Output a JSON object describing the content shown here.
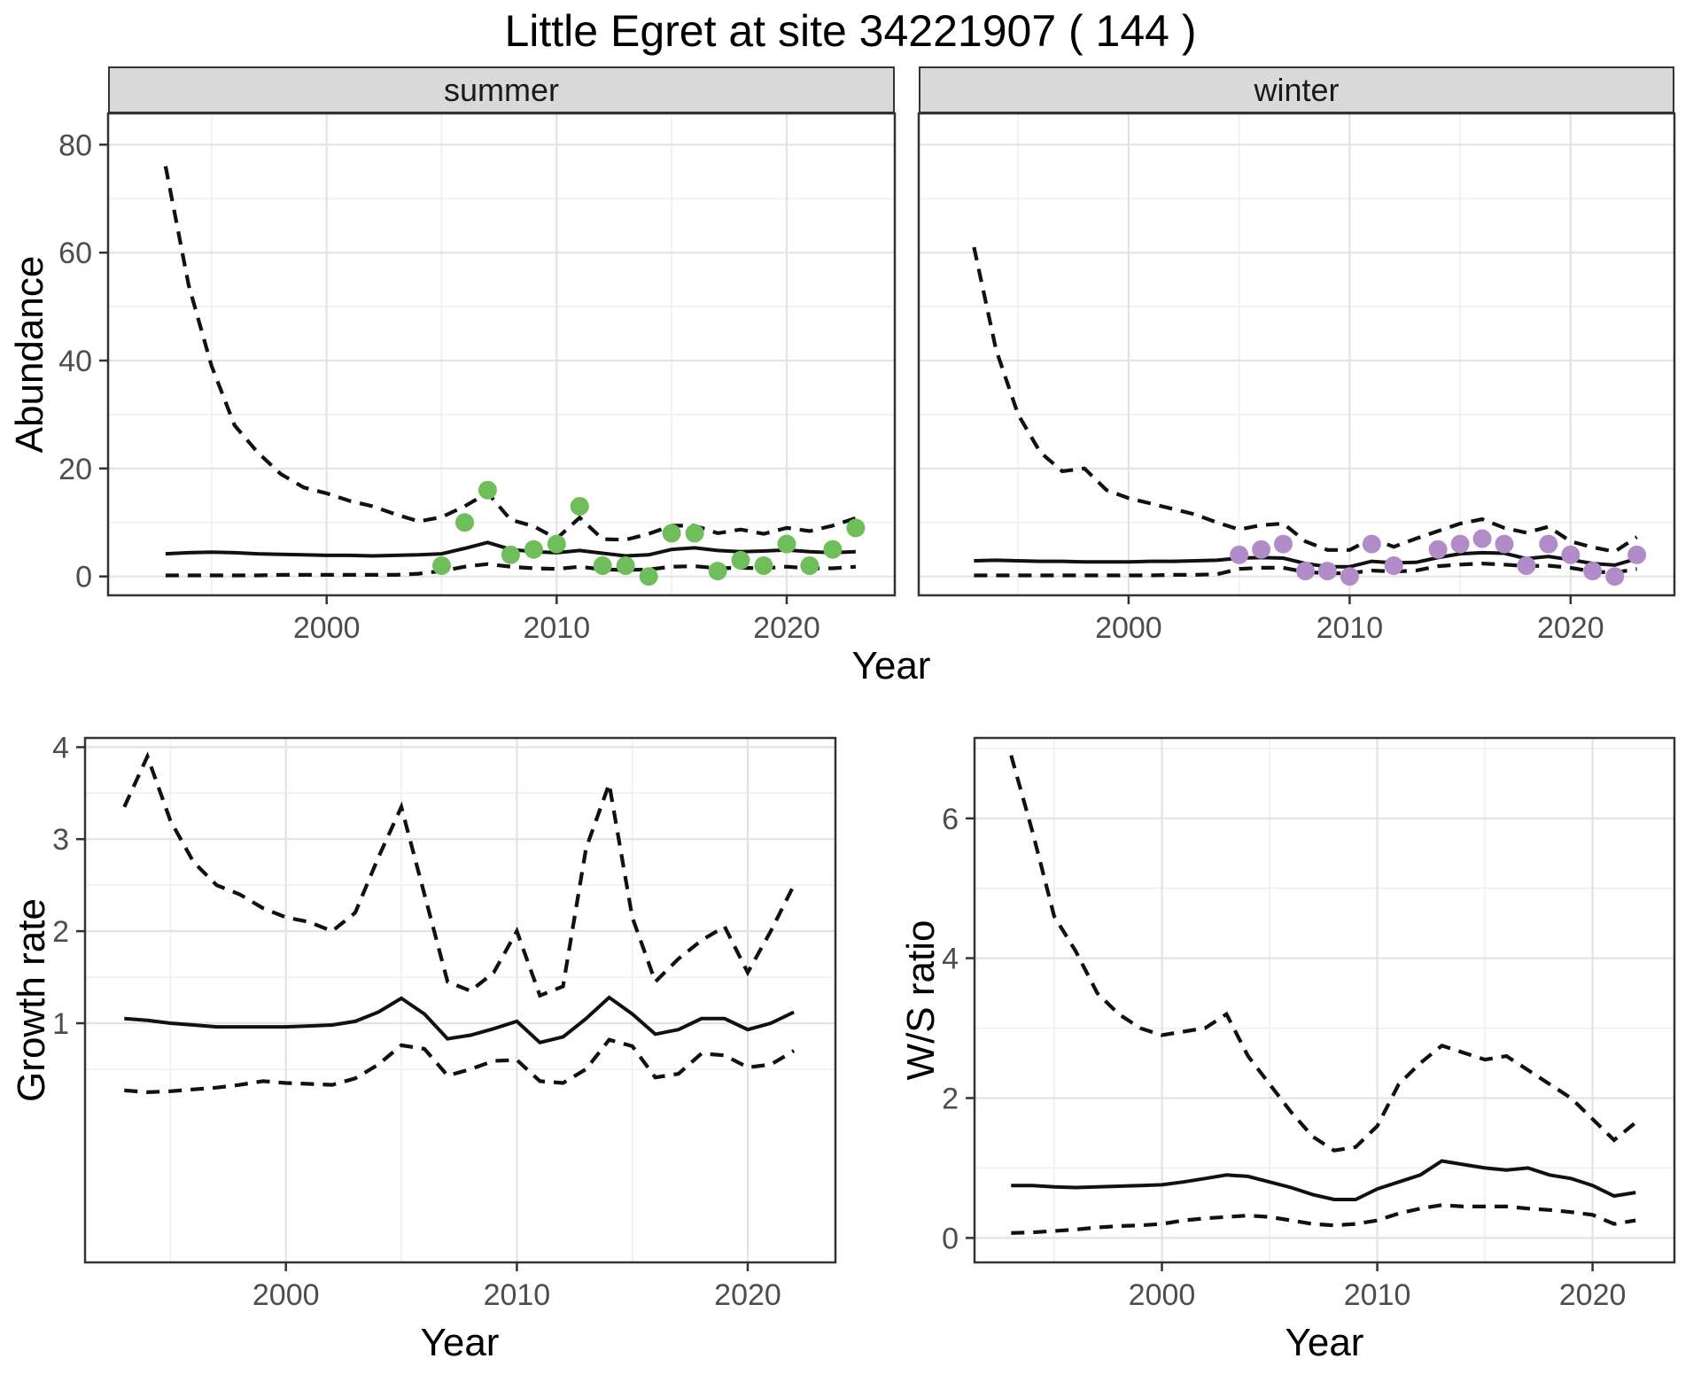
{
  "title": "Little Egret at site 34221907 ( 144 )",
  "axes": {
    "abundance": "Abundance",
    "year": "Year",
    "growth": "Growth rate",
    "ws": "W/S ratio"
  },
  "colors": {
    "summer_point": "#6FBE5B",
    "winter_point": "#B18CC8",
    "line": "#111111",
    "strip_bg": "#D9D9D9",
    "grid_major": "#E3E3E3",
    "grid_minor": "#EFEFEF",
    "panel_border": "#333333",
    "tick_text": "#4D4D4D"
  },
  "chart_data": {
    "type": "line",
    "title": "Little Egret at site 34221907 ( 144 )",
    "xlabel": "Year",
    "x_ticks": [
      2000,
      2010,
      2020
    ],
    "facets": [
      {
        "label": "summer",
        "ylabel": "Abundance",
        "y_ticks": [
          0,
          20,
          40,
          60,
          80
        ],
        "x": [
          1993,
          1994,
          1995,
          1996,
          1997,
          1998,
          1999,
          2000,
          2001,
          2002,
          2003,
          2004,
          2005,
          2006,
          2007,
          2008,
          2009,
          2010,
          2011,
          2012,
          2013,
          2014,
          2015,
          2016,
          2017,
          2018,
          2019,
          2020,
          2021,
          2022,
          2023
        ],
        "median": [
          4.2,
          4.4,
          4.5,
          4.4,
          4.2,
          4.1,
          4.0,
          3.9,
          3.9,
          3.8,
          3.9,
          4.0,
          4.2,
          5.2,
          6.3,
          5.0,
          4.6,
          4.4,
          4.8,
          4.3,
          3.8,
          4.0,
          5.0,
          5.3,
          4.8,
          4.6,
          4.7,
          4.9,
          4.6,
          4.4,
          4.6
        ],
        "upper_ci": [
          76,
          54,
          39,
          28,
          23,
          19,
          16.5,
          15.4,
          14,
          13,
          11.5,
          10.2,
          11,
          13,
          15.5,
          10.5,
          9.3,
          7.0,
          10.9,
          6.9,
          6.8,
          7.9,
          9.4,
          9.4,
          8.0,
          8.7,
          7.9,
          9.0,
          8.4,
          9.4,
          10.8
        ],
        "lower_ci": [
          0.2,
          0.2,
          0.2,
          0.2,
          0.2,
          0.3,
          0.3,
          0.3,
          0.3,
          0.3,
          0.3,
          0.5,
          1.0,
          1.8,
          2.3,
          1.8,
          1.5,
          1.4,
          1.8,
          1.3,
          1.2,
          1.3,
          1.8,
          1.9,
          1.5,
          1.6,
          1.5,
          1.8,
          1.5,
          1.5,
          1.8
        ],
        "points_x": [
          2005,
          2006,
          2007,
          2008,
          2009,
          2010,
          2011,
          2012,
          2013,
          2014,
          2015,
          2016,
          2017,
          2018,
          2019,
          2020,
          2021,
          2022,
          2023
        ],
        "points_y": [
          2,
          10,
          16,
          4,
          5,
          6,
          13,
          2,
          2,
          0,
          8,
          8,
          1,
          3,
          2,
          6,
          2,
          5,
          9
        ],
        "point_color": "#6FBE5B"
      },
      {
        "label": "winter",
        "ylabel": "Abundance",
        "y_ticks": [
          0,
          20,
          40,
          60,
          80
        ],
        "x": [
          1993,
          1994,
          1995,
          1996,
          1997,
          1998,
          1999,
          2000,
          2001,
          2002,
          2003,
          2004,
          2005,
          2006,
          2007,
          2008,
          2009,
          2010,
          2011,
          2012,
          2013,
          2014,
          2015,
          2016,
          2017,
          2018,
          2019,
          2020,
          2021,
          2022,
          2023
        ],
        "median": [
          2.9,
          3.0,
          2.9,
          2.8,
          2.8,
          2.7,
          2.7,
          2.7,
          2.8,
          2.8,
          2.9,
          3.0,
          3.4,
          3.5,
          3.4,
          2.4,
          1.8,
          1.8,
          2.8,
          2.5,
          2.6,
          3.5,
          4.2,
          4.4,
          4.3,
          3.3,
          3.7,
          3.1,
          2.4,
          2.1,
          3.3
        ],
        "upper_ci": [
          61,
          42,
          30,
          23,
          19.5,
          20,
          16,
          14.5,
          13.5,
          12.5,
          11.5,
          10,
          8.7,
          9.5,
          9.8,
          6.5,
          4.9,
          4.9,
          7.0,
          5.5,
          7.0,
          8.4,
          9.8,
          10.6,
          9.0,
          8.1,
          9.2,
          6.5,
          5.4,
          4.6,
          7.3
        ],
        "lower_ci": [
          0.2,
          0.2,
          0.2,
          0.2,
          0.2,
          0.2,
          0.2,
          0.2,
          0.2,
          0.3,
          0.3,
          0.4,
          1.4,
          1.6,
          1.6,
          0.8,
          0.6,
          0.6,
          1.1,
          0.9,
          1.1,
          1.9,
          2.2,
          2.4,
          2.2,
          1.9,
          2.0,
          1.6,
          0.9,
          0.7,
          1.4
        ],
        "points_x": [
          2005,
          2006,
          2007,
          2008,
          2009,
          2010,
          2011,
          2012,
          2014,
          2015,
          2016,
          2017,
          2018,
          2019,
          2020,
          2021,
          2022,
          2023
        ],
        "points_y": [
          4,
          5,
          6,
          1,
          1,
          0,
          6,
          2,
          5,
          6,
          7,
          6,
          2,
          6,
          4,
          1,
          0,
          4
        ],
        "point_color": "#B18CC8"
      }
    ],
    "panels": [
      {
        "name": "growth",
        "ylabel": "Growth rate",
        "xlabel": "Year",
        "y_ticks": [
          1,
          2,
          3,
          4
        ],
        "x": [
          1993,
          1994,
          1995,
          1996,
          1997,
          1998,
          1999,
          2000,
          2001,
          2002,
          2003,
          2004,
          2005,
          2006,
          2007,
          2008,
          2009,
          2010,
          2011,
          2012,
          2013,
          2014,
          2015,
          2016,
          2017,
          2018,
          2019,
          2020,
          2021,
          2022
        ],
        "median": [
          1.05,
          1.03,
          1.0,
          0.98,
          0.96,
          0.96,
          0.96,
          0.96,
          0.97,
          0.98,
          1.02,
          1.12,
          1.27,
          1.1,
          0.83,
          0.87,
          0.94,
          1.02,
          0.79,
          0.85,
          1.05,
          1.28,
          1.1,
          0.88,
          0.93,
          1.05,
          1.05,
          0.93,
          1.0,
          1.12
        ],
        "upper_ci": [
          3.35,
          3.9,
          3.2,
          2.75,
          2.5,
          2.4,
          2.25,
          2.15,
          2.1,
          2.0,
          2.2,
          2.8,
          3.35,
          2.4,
          1.45,
          1.35,
          1.55,
          2.0,
          1.3,
          1.4,
          2.9,
          3.6,
          2.15,
          1.45,
          1.7,
          1.9,
          2.05,
          1.55,
          2.0,
          2.5
        ],
        "lower_ci": [
          0.27,
          0.25,
          0.26,
          0.28,
          0.3,
          0.33,
          0.37,
          0.35,
          0.34,
          0.33,
          0.4,
          0.55,
          0.76,
          0.72,
          0.43,
          0.5,
          0.59,
          0.6,
          0.37,
          0.35,
          0.5,
          0.82,
          0.75,
          0.41,
          0.45,
          0.67,
          0.65,
          0.52,
          0.55,
          0.7
        ]
      },
      {
        "name": "ws",
        "ylabel": "W/S ratio",
        "xlabel": "Year",
        "y_ticks": [
          0,
          2,
          4,
          6
        ],
        "x": [
          1993,
          1994,
          1995,
          1996,
          1997,
          1998,
          1999,
          2000,
          2001,
          2002,
          2003,
          2004,
          2005,
          2006,
          2007,
          2008,
          2009,
          2010,
          2011,
          2012,
          2013,
          2014,
          2015,
          2016,
          2017,
          2018,
          2019,
          2020,
          2021,
          2022
        ],
        "median": [
          0.75,
          0.75,
          0.73,
          0.72,
          0.73,
          0.74,
          0.75,
          0.76,
          0.8,
          0.85,
          0.9,
          0.88,
          0.8,
          0.72,
          0.62,
          0.55,
          0.55,
          0.7,
          0.8,
          0.9,
          1.1,
          1.05,
          1.0,
          0.97,
          1.0,
          0.9,
          0.85,
          0.75,
          0.6,
          0.65
        ],
        "upper_ci": [
          6.9,
          5.8,
          4.6,
          4.1,
          3.5,
          3.2,
          3.0,
          2.9,
          2.95,
          3.0,
          3.2,
          2.6,
          2.2,
          1.8,
          1.45,
          1.25,
          1.3,
          1.6,
          2.2,
          2.5,
          2.75,
          2.65,
          2.55,
          2.6,
          2.4,
          2.2,
          2.0,
          1.7,
          1.4,
          1.65
        ],
        "lower_ci": [
          0.07,
          0.08,
          0.1,
          0.12,
          0.15,
          0.17,
          0.18,
          0.2,
          0.25,
          0.28,
          0.3,
          0.32,
          0.3,
          0.25,
          0.2,
          0.18,
          0.2,
          0.25,
          0.35,
          0.42,
          0.47,
          0.45,
          0.45,
          0.45,
          0.42,
          0.4,
          0.37,
          0.33,
          0.2,
          0.25
        ]
      }
    ]
  }
}
